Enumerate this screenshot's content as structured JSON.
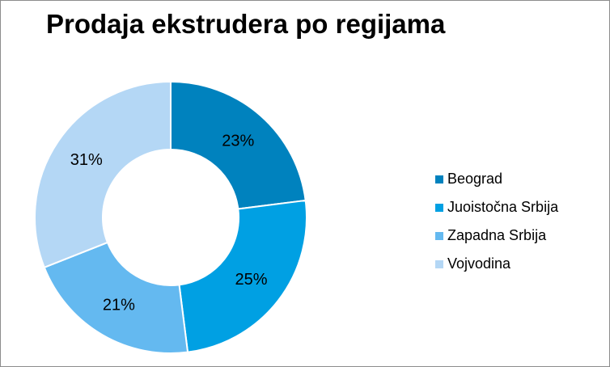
{
  "chart_data": {
    "type": "pie",
    "variant": "donut",
    "title": "Prodaja ekstrudera po regijama",
    "categories": [
      "Beograd",
      "Juoistočna Srbija",
      "Zapadna Srbija",
      "Vojvodina"
    ],
    "values": [
      23,
      25,
      21,
      31
    ],
    "data_labels": [
      "23%",
      "25%",
      "21%",
      "31%"
    ],
    "colors": [
      "#0082be",
      "#00a0e3",
      "#64b9f0",
      "#b4d7f5"
    ],
    "legend_position": "right",
    "start_angle": "top, clockwise"
  }
}
